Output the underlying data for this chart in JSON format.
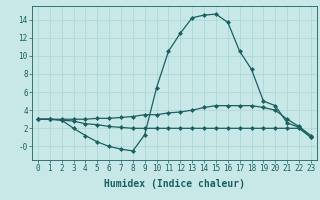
{
  "x": [
    0,
    1,
    2,
    3,
    4,
    5,
    6,
    7,
    8,
    9,
    10,
    11,
    12,
    13,
    14,
    15,
    16,
    17,
    18,
    19,
    20,
    21,
    22,
    23
  ],
  "line1": [
    3.0,
    3.0,
    2.9,
    2.8,
    2.5,
    2.4,
    2.2,
    2.1,
    2.0,
    2.0,
    2.0,
    2.0,
    2.0,
    2.0,
    2.0,
    2.0,
    2.0,
    2.0,
    2.0,
    2.0,
    2.0,
    2.0,
    2.0,
    1.0
  ],
  "line2": [
    3.0,
    3.0,
    3.0,
    3.0,
    3.0,
    3.1,
    3.1,
    3.2,
    3.3,
    3.5,
    3.5,
    3.7,
    3.8,
    4.0,
    4.3,
    4.5,
    4.5,
    4.5,
    4.5,
    4.3,
    4.0,
    3.0,
    2.2,
    1.2
  ],
  "line3": [
    3.0,
    3.0,
    2.9,
    2.0,
    1.2,
    0.5,
    0.0,
    -0.3,
    -0.5,
    1.3,
    6.5,
    10.5,
    12.5,
    14.2,
    14.5,
    14.6,
    13.7,
    10.5,
    8.5,
    5.0,
    4.5,
    2.6,
    2.1,
    1.0
  ],
  "bg_color": "#c8e8e8",
  "grid_color": "#a8d4d4",
  "line_color": "#1a6060",
  "xlabel": "Humidex (Indice chaleur)",
  "xlim": [
    -0.5,
    23.5
  ],
  "ylim": [
    -1.5,
    15.5
  ],
  "yticks": [
    0,
    2,
    4,
    6,
    8,
    10,
    12,
    14
  ],
  "ytick_labels": [
    "-0",
    "2",
    "4",
    "6",
    "8",
    "10",
    "12",
    "14"
  ],
  "xticks": [
    0,
    1,
    2,
    3,
    4,
    5,
    6,
    7,
    8,
    9,
    10,
    11,
    12,
    13,
    14,
    15,
    16,
    17,
    18,
    19,
    20,
    21,
    22,
    23
  ],
  "marker": "D",
  "markersize": 2.0,
  "linewidth": 0.9,
  "xlabel_fontsize": 7,
  "tick_fontsize": 5.5
}
